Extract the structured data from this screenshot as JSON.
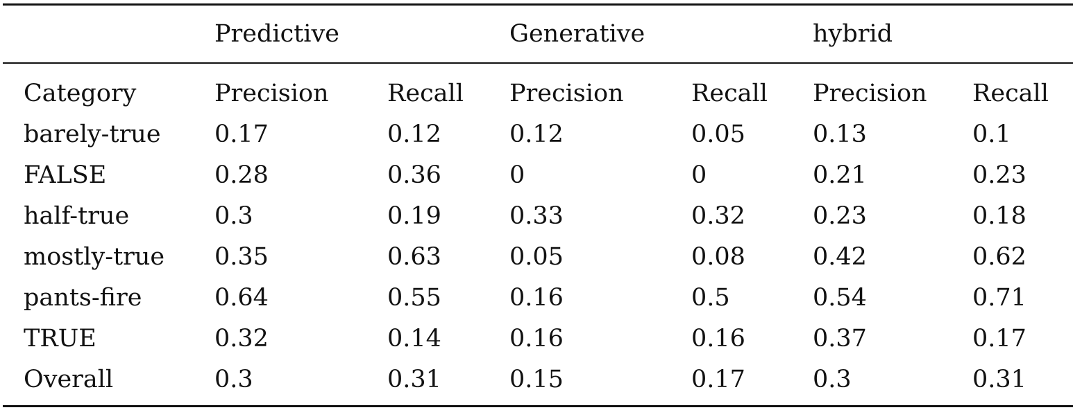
{
  "table": {
    "groups": [
      "Predictive",
      "Generative",
      "hybrid"
    ],
    "columns": [
      "Category",
      "Precision",
      "Recall",
      "Precision",
      "Recall",
      "Precision",
      "Recall"
    ],
    "rows": [
      [
        "barely-true",
        "0.17",
        "0.12",
        "0.12",
        "0.05",
        "0.13",
        "0.1"
      ],
      [
        "FALSE",
        "0.28",
        "0.36",
        "0",
        "0",
        "0.21",
        "0.23"
      ],
      [
        "half-true",
        "0.3",
        "0.19",
        "0.33",
        "0.32",
        "0.23",
        "0.18"
      ],
      [
        "mostly-true",
        "0.35",
        "0.63",
        "0.05",
        "0.08",
        "0.42",
        "0.62"
      ],
      [
        "pants-fire",
        "0.64",
        "0.55",
        "0.16",
        "0.5",
        "0.54",
        "0.71"
      ],
      [
        "TRUE",
        "0.32",
        "0.14",
        "0.16",
        "0.16",
        "0.37",
        "0.17"
      ],
      [
        "Overall",
        "0.3",
        "0.31",
        "0.15",
        "0.17",
        "0.3",
        "0.31"
      ]
    ]
  }
}
